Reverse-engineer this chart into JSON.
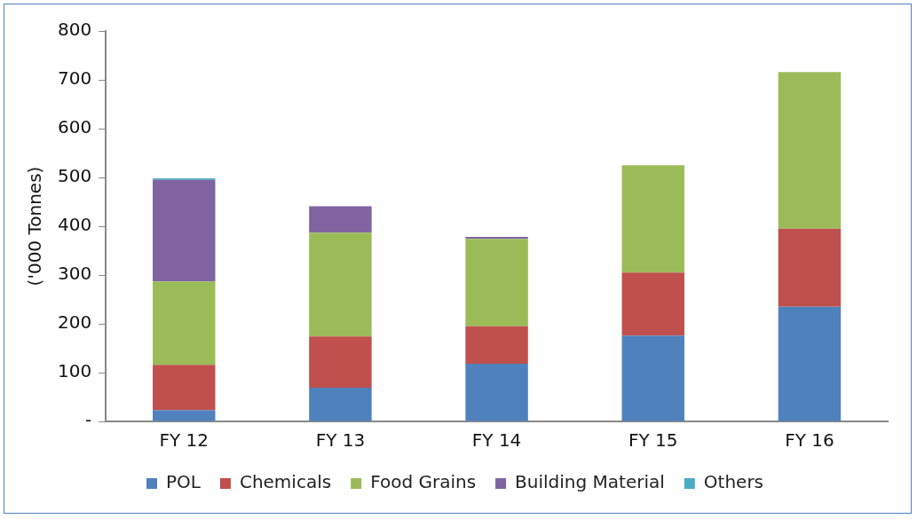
{
  "chart_data": {
    "type": "bar",
    "stacked": true,
    "ylabel": "('000 Tonnes)",
    "categories": [
      "FY 12",
      "FY 13",
      "FY 14",
      "FY 15",
      "FY 16"
    ],
    "series": [
      {
        "name": "POL",
        "color": "#4f81bd",
        "values": [
          23,
          69,
          118,
          176,
          235
        ]
      },
      {
        "name": "Chemicals",
        "color": "#c0504d",
        "values": [
          93,
          105,
          77,
          129,
          160
        ]
      },
      {
        "name": "Food Grains",
        "color": "#9bbb59",
        "values": [
          171,
          213,
          179,
          220,
          321
        ]
      },
      {
        "name": "Building Material",
        "color": "#8064a2",
        "values": [
          208,
          54,
          4,
          0,
          0
        ]
      },
      {
        "name": "Others",
        "color": "#4bacc6",
        "values": [
          3,
          0,
          0,
          0,
          0
        ]
      }
    ],
    "ylim": [
      0,
      800
    ],
    "yticks": [
      {
        "value": 0,
        "label": "-"
      },
      100,
      200,
      300,
      400,
      500,
      600,
      700,
      800
    ],
    "grid": false,
    "legend": "bottom"
  }
}
